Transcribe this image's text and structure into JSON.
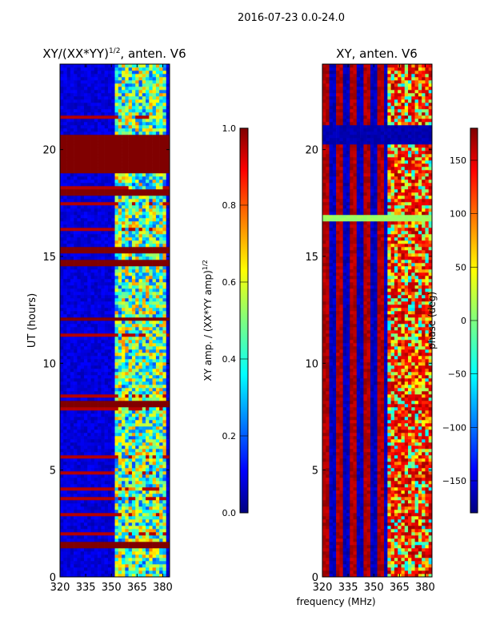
{
  "suptitle": "2016-07-23 0.0-24.0",
  "chart_data": [
    {
      "type": "heatmap",
      "title": "XY/(XX*YY)",
      "title_superscript": "1/2",
      "title_suffix": ", anten. V6",
      "xlabel": "",
      "ylabel": "UT (hours)",
      "xlim": [
        320,
        384
      ],
      "ylim": [
        0,
        24
      ],
      "xticks": [
        320,
        335,
        350,
        365,
        380
      ],
      "yticks": [
        0,
        5,
        10,
        15,
        20
      ],
      "colorbar": {
        "label": "XY amp. / (XX*YY amp)",
        "label_superscript": "1/2",
        "range": [
          0.0,
          1.0
        ],
        "ticks": [
          "0.0",
          "0.2",
          "0.4",
          "0.6",
          "0.8",
          "1.0"
        ],
        "tick_values": [
          0.0,
          0.2,
          0.4,
          0.6,
          0.8,
          1.0
        ],
        "colormap": "jet"
      },
      "saturated_time_bands_hours": [
        [
          18.9,
          20.7
        ],
        [
          17.8,
          18.2
        ],
        [
          15.2,
          15.4
        ],
        [
          14.5,
          14.8
        ],
        [
          12.0,
          12.2
        ],
        [
          7.9,
          8.2
        ],
        [
          1.4,
          1.6
        ]
      ],
      "active_freq_range_mhz": [
        352,
        380
      ],
      "background_level": 0.05
    },
    {
      "type": "heatmap",
      "title": "XY, anten. V6",
      "xlabel": "frequency (MHz)",
      "ylabel": "",
      "xlim": [
        320,
        384
      ],
      "ylim": [
        0,
        24
      ],
      "xticks": [
        320,
        335,
        350,
        365,
        380
      ],
      "yticks": [
        0,
        5,
        10,
        15,
        20
      ],
      "colorbar": {
        "label": "phase (deg)",
        "range": [
          -180,
          180
        ],
        "ticks": [
          "150",
          "100",
          "50",
          "0",
          "−50",
          "−100",
          "−150"
        ],
        "tick_values": [
          150,
          100,
          50,
          0,
          -50,
          -100,
          -150
        ],
        "colormap": "jet"
      },
      "low_phase_time_band_hours": [
        20.2,
        21.2
      ],
      "green_band_hours": [
        16.7,
        16.9
      ]
    }
  ]
}
